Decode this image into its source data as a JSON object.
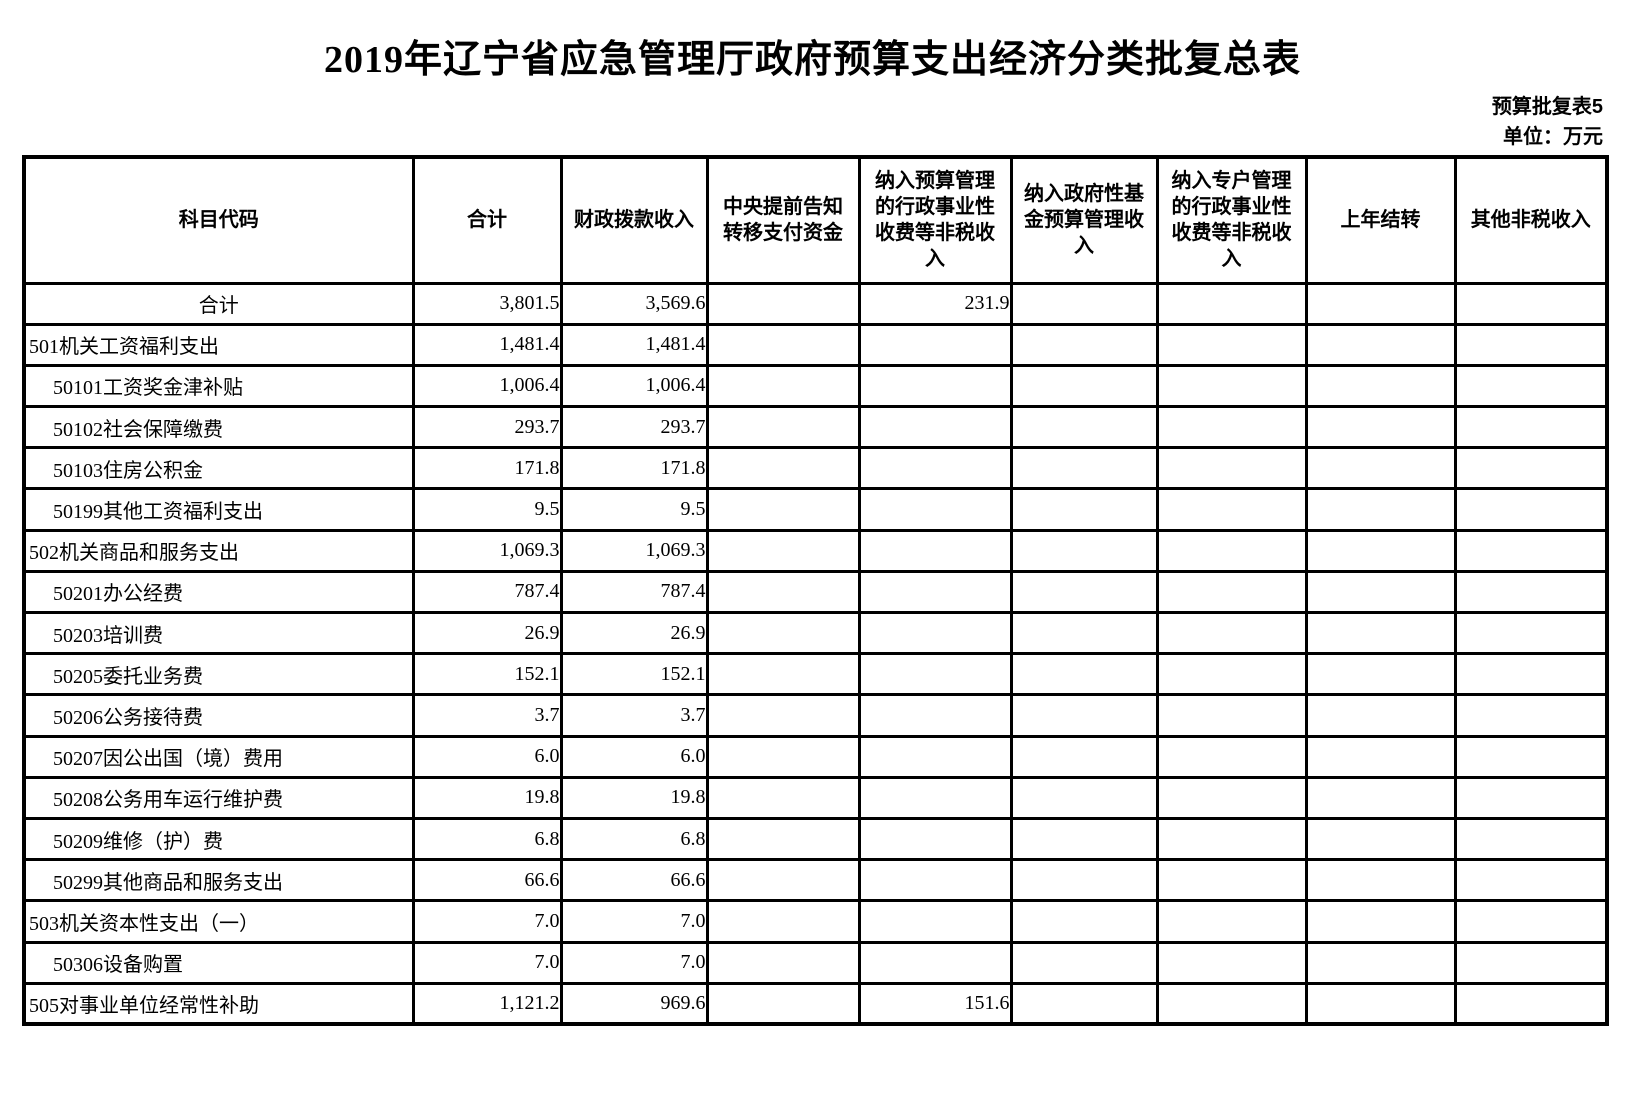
{
  "page": {
    "title": "2019年辽宁省应急管理厅政府预算支出经济分类批复总表",
    "sheet_label": "预算批复表5",
    "unit_label": "单位：万元"
  },
  "table": {
    "columns": [
      "科目代码",
      "合计",
      "财政拨款收入",
      "中央提前告知\n转移支付资金",
      "纳入预算管理\n的行政事业性\n收费等非税收\n入",
      "纳入政府性基\n金预算管理收\n入",
      "纳入专户管理\n的行政事业性\n收费等非税收\n入",
      "上年结转",
      "其他非税收入"
    ],
    "rows": [
      {
        "label": "合计",
        "level": "total",
        "values": [
          "3,801.5",
          "3,569.6",
          "",
          "231.9",
          "",
          "",
          "",
          ""
        ]
      },
      {
        "label": "501机关工资福利支出",
        "level": "l1",
        "values": [
          "1,481.4",
          "1,481.4",
          "",
          "",
          "",
          "",
          "",
          ""
        ]
      },
      {
        "label": "50101工资奖金津补贴",
        "level": "l2",
        "values": [
          "1,006.4",
          "1,006.4",
          "",
          "",
          "",
          "",
          "",
          ""
        ]
      },
      {
        "label": "50102社会保障缴费",
        "level": "l2",
        "values": [
          "293.7",
          "293.7",
          "",
          "",
          "",
          "",
          "",
          ""
        ]
      },
      {
        "label": "50103住房公积金",
        "level": "l2",
        "values": [
          "171.8",
          "171.8",
          "",
          "",
          "",
          "",
          "",
          ""
        ]
      },
      {
        "label": "50199其他工资福利支出",
        "level": "l2",
        "values": [
          "9.5",
          "9.5",
          "",
          "",
          "",
          "",
          "",
          ""
        ]
      },
      {
        "label": "502机关商品和服务支出",
        "level": "l1",
        "values": [
          "1,069.3",
          "1,069.3",
          "",
          "",
          "",
          "",
          "",
          ""
        ]
      },
      {
        "label": "50201办公经费",
        "level": "l2",
        "values": [
          "787.4",
          "787.4",
          "",
          "",
          "",
          "",
          "",
          ""
        ]
      },
      {
        "label": "50203培训费",
        "level": "l2",
        "values": [
          "26.9",
          "26.9",
          "",
          "",
          "",
          "",
          "",
          ""
        ]
      },
      {
        "label": "50205委托业务费",
        "level": "l2",
        "values": [
          "152.1",
          "152.1",
          "",
          "",
          "",
          "",
          "",
          ""
        ]
      },
      {
        "label": "50206公务接待费",
        "level": "l2",
        "values": [
          "3.7",
          "3.7",
          "",
          "",
          "",
          "",
          "",
          ""
        ]
      },
      {
        "label": "50207因公出国（境）费用",
        "level": "l2",
        "values": [
          "6.0",
          "6.0",
          "",
          "",
          "",
          "",
          "",
          ""
        ]
      },
      {
        "label": "50208公务用车运行维护费",
        "level": "l2",
        "values": [
          "19.8",
          "19.8",
          "",
          "",
          "",
          "",
          "",
          ""
        ]
      },
      {
        "label": "50209维修（护）费",
        "level": "l2",
        "values": [
          "6.8",
          "6.8",
          "",
          "",
          "",
          "",
          "",
          ""
        ]
      },
      {
        "label": "50299其他商品和服务支出",
        "level": "l2",
        "values": [
          "66.6",
          "66.6",
          "",
          "",
          "",
          "",
          "",
          ""
        ]
      },
      {
        "label": "503机关资本性支出（一）",
        "level": "l1",
        "values": [
          "7.0",
          "7.0",
          "",
          "",
          "",
          "",
          "",
          ""
        ]
      },
      {
        "label": "50306设备购置",
        "level": "l2",
        "values": [
          "7.0",
          "7.0",
          "",
          "",
          "",
          "",
          "",
          ""
        ]
      },
      {
        "label": "505对事业单位经常性补助",
        "level": "l1",
        "values": [
          "1,121.2",
          "969.6",
          "",
          "151.6",
          "",
          "",
          "",
          ""
        ]
      }
    ]
  }
}
